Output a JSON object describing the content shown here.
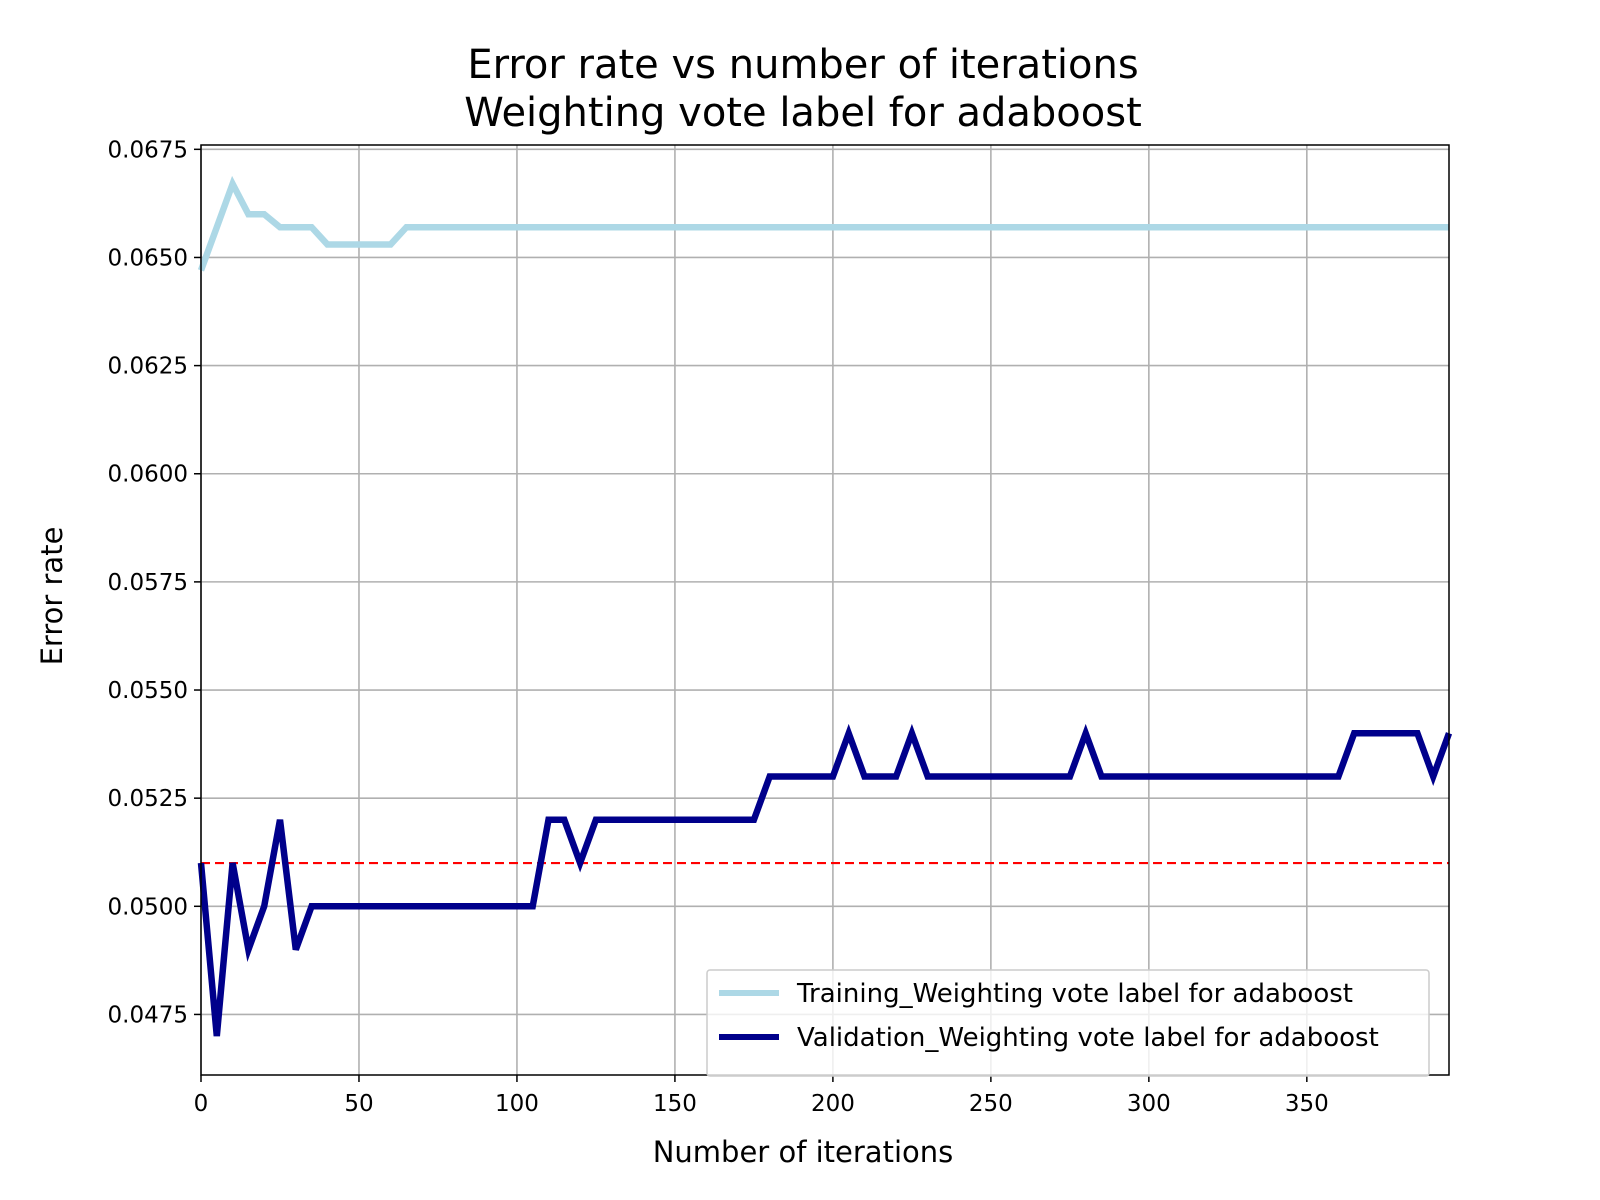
{
  "chart_data": {
    "type": "line",
    "title": "Error rate vs number of iterations",
    "subtitle": "Weighting vote label for adaboost",
    "xlabel": "Number of iterations",
    "ylabel": "Error rate",
    "xlim": [
      0,
      395
    ],
    "ylim": [
      0.0461,
      0.0676
    ],
    "x_ticks": [
      0,
      50,
      100,
      150,
      200,
      250,
      300,
      350
    ],
    "x_tick_labels": [
      "0",
      "50",
      "100",
      "150",
      "200",
      "250",
      "300",
      "350"
    ],
    "y_ticks": [
      0.0475,
      0.05,
      0.0525,
      0.055,
      0.0575,
      0.06,
      0.0625,
      0.065,
      0.0675
    ],
    "y_tick_labels": [
      "0.0475",
      "0.0500",
      "0.0525",
      "0.0550",
      "0.0575",
      "0.0600",
      "0.0625",
      "0.0650",
      "0.0675"
    ],
    "grid": true,
    "legend_position": "lower-right",
    "series": [
      {
        "name": "Training_Weighting vote label for adaboost",
        "color": "#add8e6",
        "x": [
          0,
          5,
          10,
          15,
          20,
          25,
          30,
          35,
          40,
          45,
          50,
          55,
          60,
          65,
          70,
          395
        ],
        "values": [
          0.0647,
          0.0657,
          0.0667,
          0.066,
          0.066,
          0.0657,
          0.0657,
          0.0657,
          0.0653,
          0.0653,
          0.0653,
          0.0653,
          0.0653,
          0.0657,
          0.0657,
          0.0657
        ]
      },
      {
        "name": "Validation_Weighting vote label for adaboost",
        "color": "#00008b",
        "x": [
          0,
          5,
          10,
          15,
          20,
          25,
          30,
          35,
          40,
          100,
          105,
          110,
          115,
          120,
          125,
          130,
          170,
          175,
          180,
          185,
          195,
          200,
          205,
          210,
          215,
          220,
          225,
          230,
          235,
          270,
          275,
          280,
          285,
          290,
          355,
          360,
          365,
          370,
          380,
          385,
          390,
          395
        ],
        "values": [
          0.051,
          0.047,
          0.051,
          0.049,
          0.05,
          0.052,
          0.049,
          0.05,
          0.05,
          0.05,
          0.05,
          0.052,
          0.052,
          0.051,
          0.052,
          0.052,
          0.052,
          0.052,
          0.053,
          0.053,
          0.053,
          0.053,
          0.054,
          0.053,
          0.053,
          0.053,
          0.054,
          0.053,
          0.053,
          0.053,
          0.053,
          0.054,
          0.053,
          0.053,
          0.053,
          0.053,
          0.054,
          0.054,
          0.054,
          0.054,
          0.053,
          0.054
        ]
      }
    ],
    "reference_line": {
      "y": 0.051,
      "color": "#ff0000",
      "style": "dashed"
    }
  }
}
